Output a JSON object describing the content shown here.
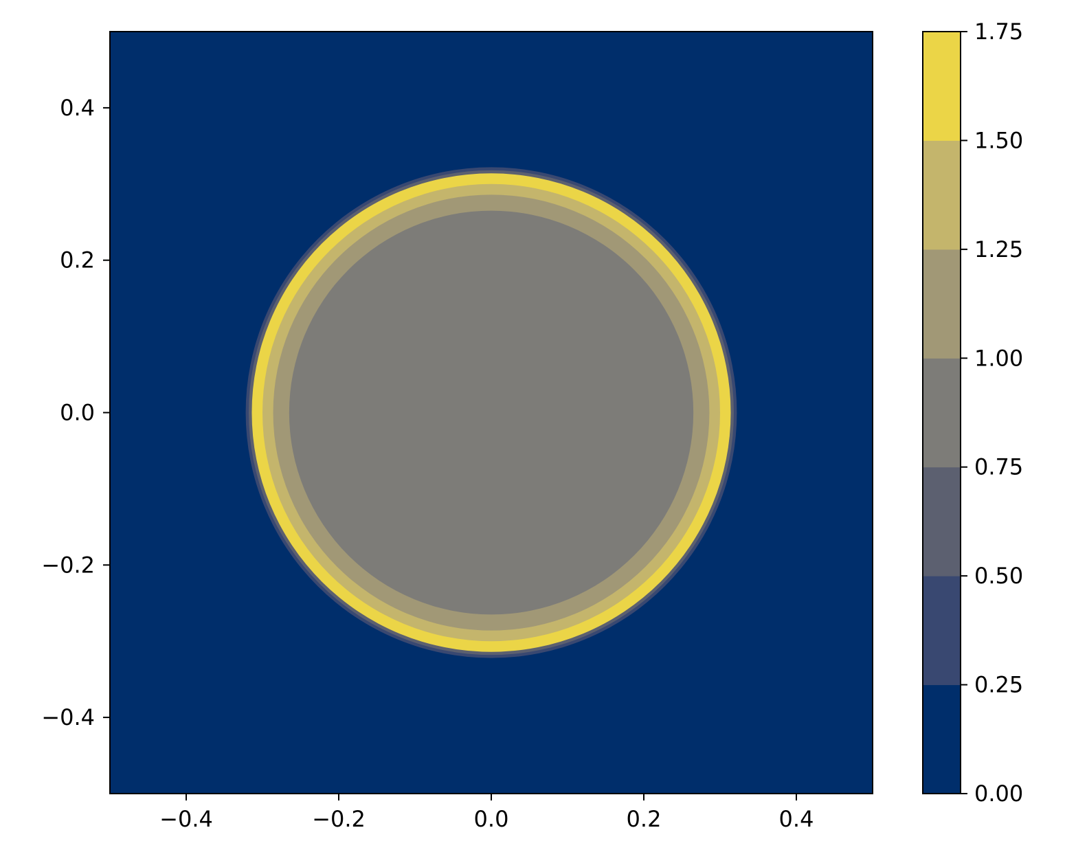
{
  "chart_data": {
    "type": "heatmap",
    "subtype": "filled-contour",
    "title": "",
    "xlabel": "",
    "ylabel": "",
    "xlim": [
      -0.5,
      0.5
    ],
    "ylim": [
      -0.5,
      0.5
    ],
    "xticks": [
      -0.4,
      -0.2,
      0.0,
      0.2,
      0.4
    ],
    "yticks": [
      -0.4,
      -0.2,
      0.0,
      0.2,
      0.4
    ],
    "xtick_labels": [
      "−0.4",
      "−0.2",
      "0.0",
      "0.2",
      "0.4"
    ],
    "ytick_labels": [
      "0.4",
      "0.2",
      "0.0",
      "−0.2",
      "−0.4"
    ],
    "grid": false,
    "background_level_color": "#002e6b",
    "shape": {
      "kind": "radial-ring",
      "center": [
        0.0,
        0.0
      ],
      "rings": [
        {
          "outer_radius": 0.322,
          "level_range": [
            0.25,
            0.5
          ],
          "color": "#394871"
        },
        {
          "outer_radius": 0.318,
          "level_range": [
            0.5,
            0.75
          ],
          "color": "#5c6070"
        },
        {
          "outer_radius": 0.314,
          "level_range": [
            1.5,
            1.75
          ],
          "color": "#ebd547"
        },
        {
          "outer_radius": 0.3,
          "level_range": [
            1.25,
            1.5
          ],
          "color": "#c4b56c"
        },
        {
          "outer_radius": 0.286,
          "level_range": [
            1.0,
            1.25
          ],
          "color": "#a19876"
        },
        {
          "outer_radius": 0.265,
          "level_range": [
            0.75,
            1.0
          ],
          "color": "#7d7c78"
        }
      ]
    },
    "colorbar": {
      "levels": [
        0.0,
        0.25,
        0.5,
        0.75,
        1.0,
        1.25,
        1.5,
        1.75
      ],
      "tick_labels": [
        "0.00",
        "0.25",
        "0.50",
        "0.75",
        "1.00",
        "1.25",
        "1.50",
        "1.75"
      ],
      "colors": [
        "#002e6b",
        "#394871",
        "#5c6070",
        "#7d7c78",
        "#a19876",
        "#c4b56c",
        "#ebd547"
      ]
    }
  }
}
